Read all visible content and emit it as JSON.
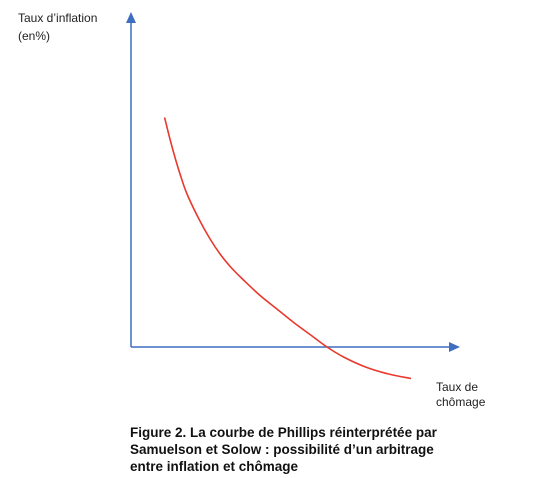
{
  "chart_data": {
    "type": "line",
    "title": "",
    "ylabel": "Taux d’inflation\n(en%)",
    "xlabel": "Taux de\nchômage",
    "caption": "Figure 2. La courbe de Phillips réinterprétée par\nSamuelson et Solow : possibilité d’un arbitrage\nentre inflation et chômage",
    "grid": false,
    "legend": "none",
    "ticks": false,
    "series": [
      {
        "color": "#e8392e",
        "x": [
          1.2,
          1.4,
          1.6,
          1.8,
          2.0,
          2.4,
          2.8,
          3.2,
          3.6,
          4.0,
          4.6,
          5.2,
          5.8,
          6.4,
          7.0,
          7.6,
          8.4,
          9.2,
          10.0
        ],
        "y": [
          10.2,
          9.2,
          8.3,
          7.5,
          6.8,
          5.75,
          4.85,
          4.1,
          3.5,
          3.0,
          2.3,
          1.7,
          1.1,
          0.55,
          0.0,
          -0.45,
          -0.9,
          -1.2,
          -1.4
        ]
      }
    ],
    "xlim": [
      0,
      11
    ],
    "ylim": [
      -2,
      13
    ],
    "colors": {
      "axis": "#3f6dc0",
      "curve": "#e8392e"
    }
  }
}
